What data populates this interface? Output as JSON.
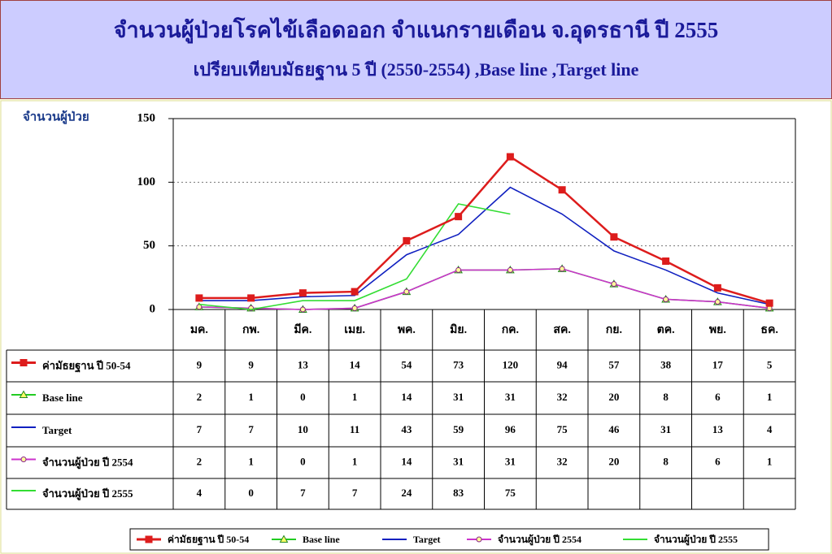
{
  "chart_data": {
    "type": "line",
    "title": "จำนวนผู้ป่วยโรคไข้เลือดออก จำแนกรายเดือน จ.อุดรธานี ปี 2555",
    "subtitle": "เปรียบเทียบมัธยฐาน 5 ปี (2550-2554) ,Base line ,Target line",
    "y_label": "จำนวนผู้ป่วย",
    "categories": [
      "มค.",
      "กพ.",
      "มีค.",
      "เมย.",
      "พค.",
      "มิย.",
      "กค.",
      "สค.",
      "กย.",
      "ตค.",
      "พย.",
      "ธค."
    ],
    "series": [
      {
        "name": "ค่ามัธยฐาน ปี 50-54",
        "color": "#dd1c1c",
        "marker": "square",
        "values": [
          9,
          9,
          13,
          14,
          54,
          73,
          120,
          94,
          57,
          38,
          17,
          5
        ]
      },
      {
        "name": "Base line",
        "color": "#22cc22",
        "marker": "triangle",
        "values": [
          2,
          1,
          0,
          1,
          14,
          31,
          31,
          32,
          20,
          8,
          6,
          1
        ]
      },
      {
        "name": "Target",
        "color": "#1020c0",
        "marker": "none",
        "values": [
          7,
          7,
          10,
          11,
          43,
          59,
          96,
          75,
          46,
          31,
          13,
          4
        ]
      },
      {
        "name": "จำนวนผู้ป่วย ปี 2554",
        "color": "#cc33cc",
        "marker": "circle",
        "values": [
          2,
          1,
          0,
          1,
          14,
          31,
          31,
          32,
          20,
          8,
          6,
          1
        ]
      },
      {
        "name": "จำนวนผู้ป่วย ปี 2555",
        "color": "#33dd33",
        "marker": "none",
        "values": [
          4,
          0,
          7,
          7,
          24,
          83,
          75,
          null,
          null,
          null,
          null,
          null
        ]
      }
    ],
    "ylim": [
      0,
      150
    ],
    "yticks": [
      0,
      50,
      100,
      150
    ],
    "grid": true
  }
}
